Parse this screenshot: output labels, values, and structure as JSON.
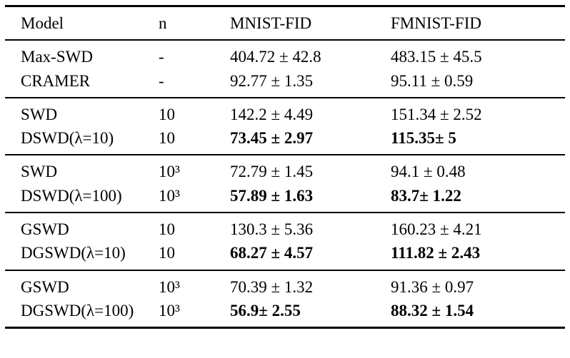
{
  "table": {
    "headers": {
      "model": "Model",
      "n": "n",
      "mnist": "MNIST-FID",
      "fmnist": "FMNIST-FID"
    },
    "groups": [
      {
        "rows": [
          {
            "model": "Max-SWD",
            "n": "-",
            "mnist": "404.72 ± 42.8",
            "fmnist": "483.15 ± 45.5"
          },
          {
            "model": "CRAMER",
            "n": "-",
            "mnist": "92.77 ± 1.35",
            "fmnist": "95.11 ± 0.59"
          }
        ]
      },
      {
        "rows": [
          {
            "model": "SWD",
            "n": "10",
            "mnist": "142.2 ± 4.49",
            "fmnist": "151.34 ± 2.52"
          },
          {
            "model": "DSWD(λ=10)",
            "n": "10",
            "mnist": "73.45 ± 2.97",
            "fmnist": "115.35± 5"
          }
        ]
      },
      {
        "rows": [
          {
            "model": "SWD",
            "n": "10³",
            "mnist": "72.79 ± 1.45",
            "fmnist": "94.1 ± 0.48"
          },
          {
            "model": "DSWD(λ=100)",
            "n": "10³",
            "mnist": "57.89 ± 1.63",
            "fmnist": "83.7± 1.22"
          }
        ]
      },
      {
        "rows": [
          {
            "model": "GSWD",
            "n": "10",
            "mnist": "130.3 ± 5.36",
            "fmnist": "160.23 ± 4.21"
          },
          {
            "model": "DGSWD(λ=10)",
            "n": "10",
            "mnist": "68.27 ± 4.57",
            "fmnist": "111.82 ± 2.43"
          }
        ]
      },
      {
        "rows": [
          {
            "model": "GSWD",
            "n": "10³",
            "mnist": "70.39 ± 1.32",
            "fmnist": "91.36 ± 0.97"
          },
          {
            "model": "DGSWD(λ=100)",
            "n": "10³",
            "mnist": "56.9± 2.55",
            "fmnist": "88.32 ± 1.54"
          }
        ]
      }
    ]
  }
}
